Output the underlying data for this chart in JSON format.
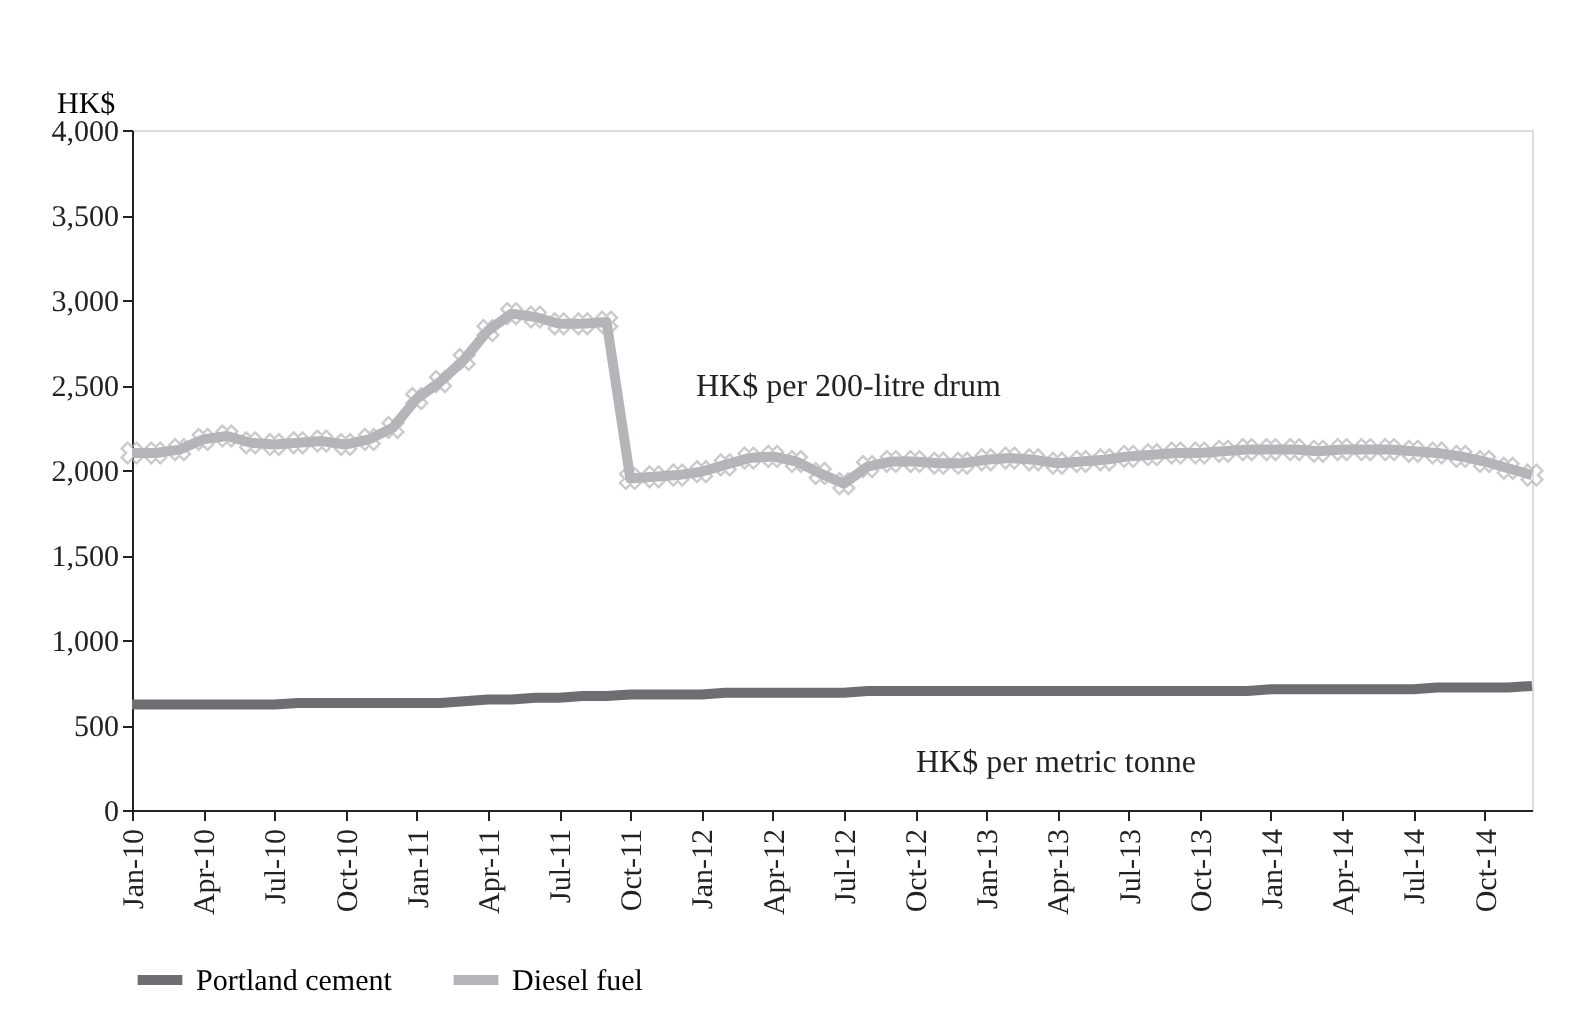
{
  "chart_data": {
    "type": "line",
    "ylabel": "HK$",
    "categories": [
      "Jan-10",
      null,
      null,
      "Apr-10",
      null,
      null,
      "Jul-10",
      null,
      null,
      "Oct-10",
      null,
      null,
      "Jan-11",
      null,
      null,
      "Apr-11",
      null,
      null,
      "Jul-11",
      null,
      null,
      "Oct-11",
      null,
      null,
      "Jan-12",
      null,
      null,
      "Apr-12",
      null,
      null,
      "Jul-12",
      null,
      null,
      "Oct-12",
      null,
      null,
      "Jan-13",
      null,
      null,
      "Apr-13",
      null,
      null,
      "Jul-13",
      null,
      null,
      "Oct-13",
      null,
      null,
      "Jan-14",
      null,
      null,
      "Apr-14",
      null,
      null,
      "Jul-14",
      null,
      null,
      "Oct-14",
      null,
      null
    ],
    "series": [
      {
        "name": "Portland cement",
        "color": "#6d6e71",
        "marker": "none",
        "values": [
          620,
          620,
          620,
          620,
          620,
          620,
          620,
          630,
          630,
          630,
          630,
          630,
          630,
          630,
          640,
          650,
          650,
          660,
          660,
          670,
          670,
          680,
          680,
          680,
          680,
          690,
          690,
          690,
          690,
          690,
          690,
          700,
          700,
          700,
          700,
          700,
          700,
          700,
          700,
          700,
          700,
          700,
          700,
          700,
          700,
          700,
          700,
          700,
          710,
          710,
          710,
          710,
          710,
          710,
          710,
          720,
          720,
          720,
          720,
          730
        ]
      },
      {
        "name": "Diesel fuel",
        "color": "#b4b5b8",
        "marker": "cross",
        "values": [
          2100,
          2100,
          2120,
          2180,
          2200,
          2160,
          2150,
          2160,
          2170,
          2150,
          2180,
          2250,
          2420,
          2520,
          2650,
          2820,
          2920,
          2900,
          2860,
          2860,
          2870,
          1950,
          1960,
          1970,
          1990,
          2030,
          2070,
          2080,
          2050,
          1980,
          1920,
          2020,
          2050,
          2050,
          2040,
          2040,
          2060,
          2070,
          2060,
          2040,
          2050,
          2060,
          2080,
          2090,
          2100,
          2100,
          2110,
          2120,
          2120,
          2120,
          2110,
          2120,
          2120,
          2120,
          2110,
          2100,
          2080,
          2050,
          2010,
          1970
        ]
      }
    ],
    "ylim": [
      0,
      4000
    ],
    "yticks": [
      0,
      500,
      {
        "value": 1000,
        "label": "1,000"
      },
      {
        "value": 1500,
        "label": "1,500"
      },
      {
        "value": 2000,
        "label": "2,000"
      },
      {
        "value": 2500,
        "label": "2,500"
      },
      {
        "value": 3000,
        "label": "3,000"
      },
      {
        "value": 3500,
        "label": "3,500"
      },
      {
        "value": 4000,
        "label": "4,000"
      }
    ],
    "grid": false,
    "legend": "bottom",
    "line_style": "solid",
    "annotations": [
      "HK$ per metric tonne",
      "HK$ per 200-litre drum"
    ]
  }
}
